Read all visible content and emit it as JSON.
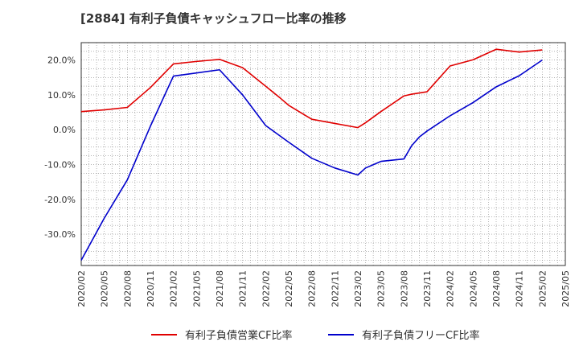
{
  "title": "[2884]  有利子負債キャッシュフロー比率の推移",
  "colors": {
    "series_red": "#e00000",
    "series_blue": "#0000cc",
    "grid": "#888888",
    "axis": "#333333"
  },
  "chart_data": {
    "type": "line",
    "title": "[2884]  有利子負債キャッシュフロー比率の推移",
    "xlabel": "",
    "ylabel": "",
    "x": [
      "2020/02",
      "2020/05",
      "2020/08",
      "2020/11",
      "2021/02",
      "2021/05",
      "2021/08",
      "2021/11",
      "2022/02",
      "2022/05",
      "2022/08",
      "2022/11",
      "2023/02",
      "2023/05",
      "2023/08",
      "2023/11",
      "2024/02",
      "2024/05",
      "2024/08",
      "2024/11",
      "2025/02",
      "2025/05"
    ],
    "ylim": [
      -39,
      25
    ],
    "yticks": [
      20,
      10,
      0,
      -10,
      -20,
      -30
    ],
    "ytick_labels": [
      "20.0%",
      "10.0%",
      "0.0%",
      "-10.0%",
      "-20.0%",
      "-30.0%"
    ],
    "grid": true,
    "legend_position": "bottom",
    "series": [
      {
        "name": "有利子負債営業CF比率",
        "color": "#e00000",
        "points": [
          [
            "2020/02",
            5.2
          ],
          [
            "2020/05",
            5.7
          ],
          [
            "2020/08",
            6.4
          ],
          [
            "2020/11",
            12.1
          ],
          [
            "2021/02",
            18.9
          ],
          [
            "2021/05",
            19.6
          ],
          [
            "2021/08",
            20.2
          ],
          [
            "2021/11",
            17.8
          ],
          [
            "2022/02",
            12.5
          ],
          [
            "2022/04",
            8.9
          ],
          [
            "2022/05",
            7.0
          ],
          [
            "2022/08",
            3.0
          ],
          [
            "2022/11",
            1.8
          ],
          [
            "2023/02",
            0.6
          ],
          [
            "2023/03",
            2.0
          ],
          [
            "2023/05",
            5.2
          ],
          [
            "2023/08",
            9.7
          ],
          [
            "2023/09",
            10.2
          ],
          [
            "2023/11",
            10.9
          ],
          [
            "2024/02",
            18.3
          ],
          [
            "2024/05",
            20.1
          ],
          [
            "2024/08",
            23.1
          ],
          [
            "2024/11",
            22.3
          ],
          [
            "2025/02",
            22.9
          ]
        ]
      },
      {
        "name": "有利子負債フリーCF比率",
        "color": "#0000cc",
        "points": [
          [
            "2020/02",
            -37.5
          ],
          [
            "2020/05",
            -25.4
          ],
          [
            "2020/08",
            -14.4
          ],
          [
            "2020/11",
            1.0
          ],
          [
            "2021/02",
            15.4
          ],
          [
            "2021/05",
            16.3
          ],
          [
            "2021/08",
            17.2
          ],
          [
            "2021/11",
            10.0
          ],
          [
            "2022/02",
            1.2
          ],
          [
            "2022/05",
            -3.6
          ],
          [
            "2022/08",
            -8.2
          ],
          [
            "2022/11",
            -11.0
          ],
          [
            "2023/02",
            -13.0
          ],
          [
            "2023/03",
            -11.0
          ],
          [
            "2023/05",
            -9.1
          ],
          [
            "2023/08",
            -8.4
          ],
          [
            "2023/09",
            -4.6
          ],
          [
            "2023/10",
            -2.1
          ],
          [
            "2023/11",
            -0.4
          ],
          [
            "2024/02",
            4.0
          ],
          [
            "2024/05",
            7.8
          ],
          [
            "2024/08",
            12.3
          ],
          [
            "2024/11",
            15.5
          ],
          [
            "2025/02",
            20.0
          ]
        ]
      }
    ]
  }
}
